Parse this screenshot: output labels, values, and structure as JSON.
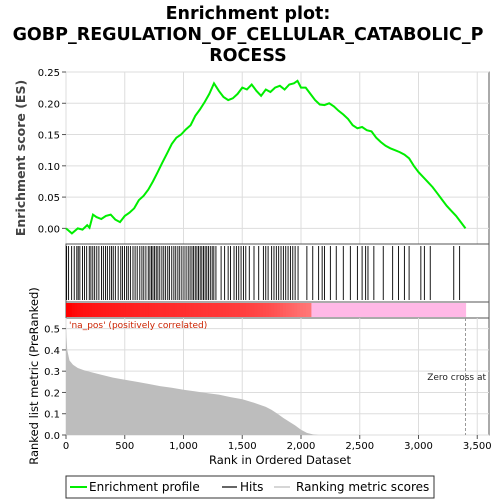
{
  "chart_data": {
    "type": "line",
    "title_lines": [
      "Enrichment plot:",
      "GOBP_REGULATION_OF_CELLULAR_CATABOLIC_P",
      "ROCESS"
    ],
    "xlabel": "Rank in Ordered Dataset",
    "ylabel_top": "Enrichment score (ES)",
    "ylabel_bottom": "Ranked list metric (PreRanked)",
    "xlim": [
      0,
      3600
    ],
    "x_ticks": [
      0,
      500,
      1000,
      1500,
      2000,
      2500,
      3000,
      3500
    ],
    "x_tick_labels": [
      "0",
      "500",
      "1,000",
      "1,500",
      "2,000",
      "2,500",
      "3,000",
      "3,500"
    ],
    "es_ylim": [
      -0.025,
      0.25
    ],
    "es_ticks": [
      0.0,
      0.05,
      0.1,
      0.15,
      0.2,
      0.25
    ],
    "es_tick_labels": [
      "0.00",
      "0.05",
      "0.10",
      "0.15",
      "0.20",
      "0.25"
    ],
    "metric_ylim": [
      0,
      0.55
    ],
    "metric_ticks": [
      0.0,
      0.1,
      0.2,
      0.3,
      0.4,
      0.5
    ],
    "metric_tick_labels": [
      "0.0",
      "0.1",
      "0.2",
      "0.3",
      "0.4",
      "0.5"
    ],
    "grid": true,
    "total_genes": 3400,
    "zero_cross": 3400,
    "es_curve": {
      "name": "Enrichment profile",
      "color": "#00ee00",
      "x": [
        0,
        50,
        100,
        140,
        180,
        200,
        230,
        260,
        300,
        340,
        380,
        420,
        460,
        500,
        540,
        580,
        620,
        660,
        700,
        740,
        780,
        820,
        860,
        900,
        940,
        980,
        1020,
        1060,
        1100,
        1140,
        1180,
        1220,
        1260,
        1300,
        1340,
        1380,
        1420,
        1460,
        1500,
        1540,
        1580,
        1620,
        1660,
        1700,
        1740,
        1780,
        1820,
        1860,
        1900,
        1940,
        1970,
        2000,
        2040,
        2080,
        2120,
        2160,
        2200,
        2240,
        2280,
        2320,
        2360,
        2400,
        2440,
        2480,
        2520,
        2560,
        2600,
        2640,
        2680,
        2720,
        2760,
        2800,
        2840,
        2880,
        2920,
        2960,
        3000,
        3040,
        3080,
        3120,
        3160,
        3200,
        3240,
        3280,
        3320,
        3360,
        3400
      ],
      "y": [
        0.0,
        -0.008,
        0.0,
        -0.002,
        0.005,
        0.001,
        0.022,
        0.018,
        0.015,
        0.02,
        0.022,
        0.014,
        0.01,
        0.02,
        0.025,
        0.032,
        0.045,
        0.052,
        0.062,
        0.075,
        0.09,
        0.105,
        0.12,
        0.135,
        0.145,
        0.15,
        0.158,
        0.165,
        0.18,
        0.19,
        0.202,
        0.215,
        0.232,
        0.22,
        0.21,
        0.205,
        0.208,
        0.215,
        0.225,
        0.222,
        0.23,
        0.22,
        0.212,
        0.222,
        0.218,
        0.225,
        0.228,
        0.222,
        0.23,
        0.232,
        0.236,
        0.225,
        0.225,
        0.215,
        0.205,
        0.198,
        0.197,
        0.2,
        0.195,
        0.188,
        0.182,
        0.175,
        0.165,
        0.16,
        0.162,
        0.157,
        0.155,
        0.145,
        0.138,
        0.132,
        0.128,
        0.125,
        0.122,
        0.118,
        0.112,
        0.1,
        0.09,
        0.082,
        0.074,
        0.066,
        0.056,
        0.046,
        0.036,
        0.028,
        0.02,
        0.01,
        0.0
      ]
    },
    "hits": [
      5,
      22,
      48,
      70,
      92,
      104,
      118,
      140,
      158,
      176,
      198,
      212,
      228,
      244,
      262,
      280,
      302,
      318,
      336,
      352,
      372,
      388,
      402,
      420,
      444,
      466,
      480,
      498,
      516,
      530,
      548,
      570,
      588,
      606,
      628,
      646,
      662,
      680,
      700,
      714,
      728,
      740,
      754,
      768,
      782,
      798,
      816,
      832,
      848,
      866,
      880,
      900,
      918,
      934,
      952,
      968,
      986,
      1004,
      1022,
      1040,
      1056,
      1072,
      1086,
      1100,
      1114,
      1128,
      1142,
      1156,
      1170,
      1184,
      1198,
      1212,
      1228,
      1244,
      1258,
      1276,
      1320,
      1350,
      1380,
      1400,
      1430,
      1450,
      1470,
      1490,
      1510,
      1530,
      1560,
      1600,
      1640,
      1680,
      1700,
      1720,
      1750,
      1770,
      1790,
      1810,
      1830,
      1850,
      1870,
      1890,
      1910,
      1930,
      1950,
      1975,
      2050,
      2100,
      2150,
      2180,
      2200,
      2250,
      2300,
      2360,
      2420,
      2480,
      2520,
      2550,
      2570,
      2620,
      2700,
      2780,
      2830,
      2880,
      2920,
      3020,
      3050,
      3100,
      3300,
      3350
    ],
    "metric_profile": {
      "x": [
        0,
        10,
        30,
        60,
        100,
        150,
        200,
        300,
        400,
        500,
        600,
        700,
        800,
        900,
        1000,
        1100,
        1200,
        1300,
        1400,
        1500,
        1600,
        1700,
        1750,
        1800,
        1850,
        1900,
        1950,
        2000,
        2050,
        2100,
        2150,
        2200,
        2400,
        2600,
        2800,
        3000,
        3200,
        3400
      ],
      "y": [
        0.5,
        0.4,
        0.35,
        0.33,
        0.315,
        0.305,
        0.297,
        0.283,
        0.27,
        0.26,
        0.25,
        0.24,
        0.23,
        0.222,
        0.213,
        0.205,
        0.197,
        0.19,
        0.178,
        0.168,
        0.152,
        0.132,
        0.118,
        0.1,
        0.08,
        0.062,
        0.045,
        0.025,
        0.01,
        0.003,
        0.0,
        0.0,
        0.0,
        0.0,
        0.0,
        0.0,
        0.0,
        0.0
      ]
    },
    "annotations": {
      "positive_label": "'na_pos' (positively correlated)",
      "zero_cross_label": "Zero cross at"
    },
    "legend": [
      {
        "name": "Enrichment profile",
        "color": "#00ee00"
      },
      {
        "name": "Hits",
        "color": "#000000"
      },
      {
        "name": "Ranking metric scores",
        "color": "#bbbbbb"
      }
    ]
  }
}
